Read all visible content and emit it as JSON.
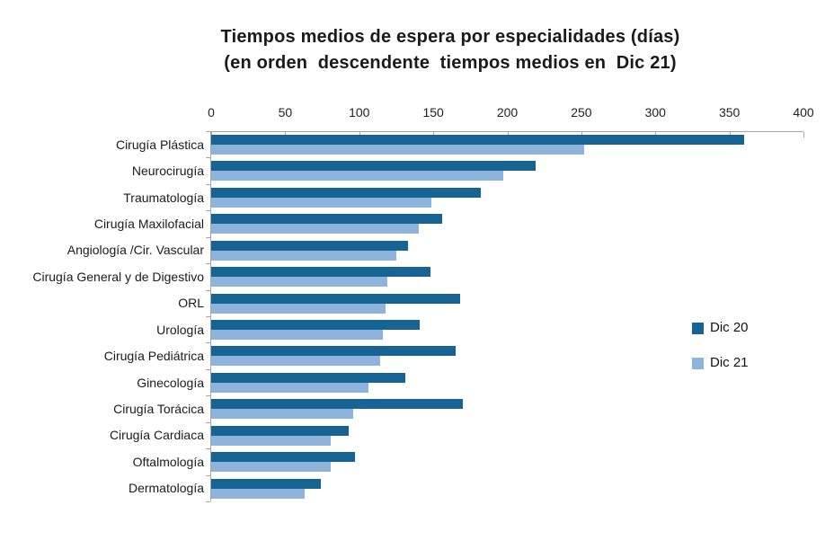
{
  "title": {
    "line1": "Tiempos medios de espera por especialidades (días)",
    "line2": "(en orden  descendente  tiempos medios en  Dic 21)"
  },
  "chart_data": {
    "type": "bar",
    "orientation": "horizontal",
    "title": "Tiempos medios de espera por especialidades (días)",
    "subtitle": "(en orden  descendente  tiempos medios en  Dic 21)",
    "xlabel": "",
    "ylabel": "",
    "xlim": [
      0,
      400
    ],
    "x_ticks": [
      0,
      50,
      100,
      150,
      200,
      250,
      300,
      350,
      400
    ],
    "grid": false,
    "legend_position": "right",
    "axis_color": "#a6a6a6",
    "text_color": "#1a1a1a",
    "categories": [
      "Cirugía Plástica",
      "Neurocirugía",
      "Traumatología",
      "Cirugía Maxilofacial",
      "Angiología /Cir. Vascular",
      "Cirugía General y de Digestivo",
      "ORL",
      "Urología",
      "Cirugía Pediátrica",
      "Ginecología",
      "Cirugía Torácica",
      "Cirugía Cardiaca",
      "Oftalmología",
      "Dermatología"
    ],
    "series": [
      {
        "name": "Dic 20",
        "color": "#176394",
        "values": [
          360,
          219,
          182,
          156,
          133,
          148,
          168,
          141,
          165,
          131,
          170,
          93,
          97,
          74
        ]
      },
      {
        "name": "Dic 21",
        "color": "#8eb4dc",
        "values": [
          252,
          197,
          149,
          140,
          125,
          119,
          118,
          116,
          114,
          106,
          96,
          81,
          81,
          63
        ]
      }
    ]
  }
}
